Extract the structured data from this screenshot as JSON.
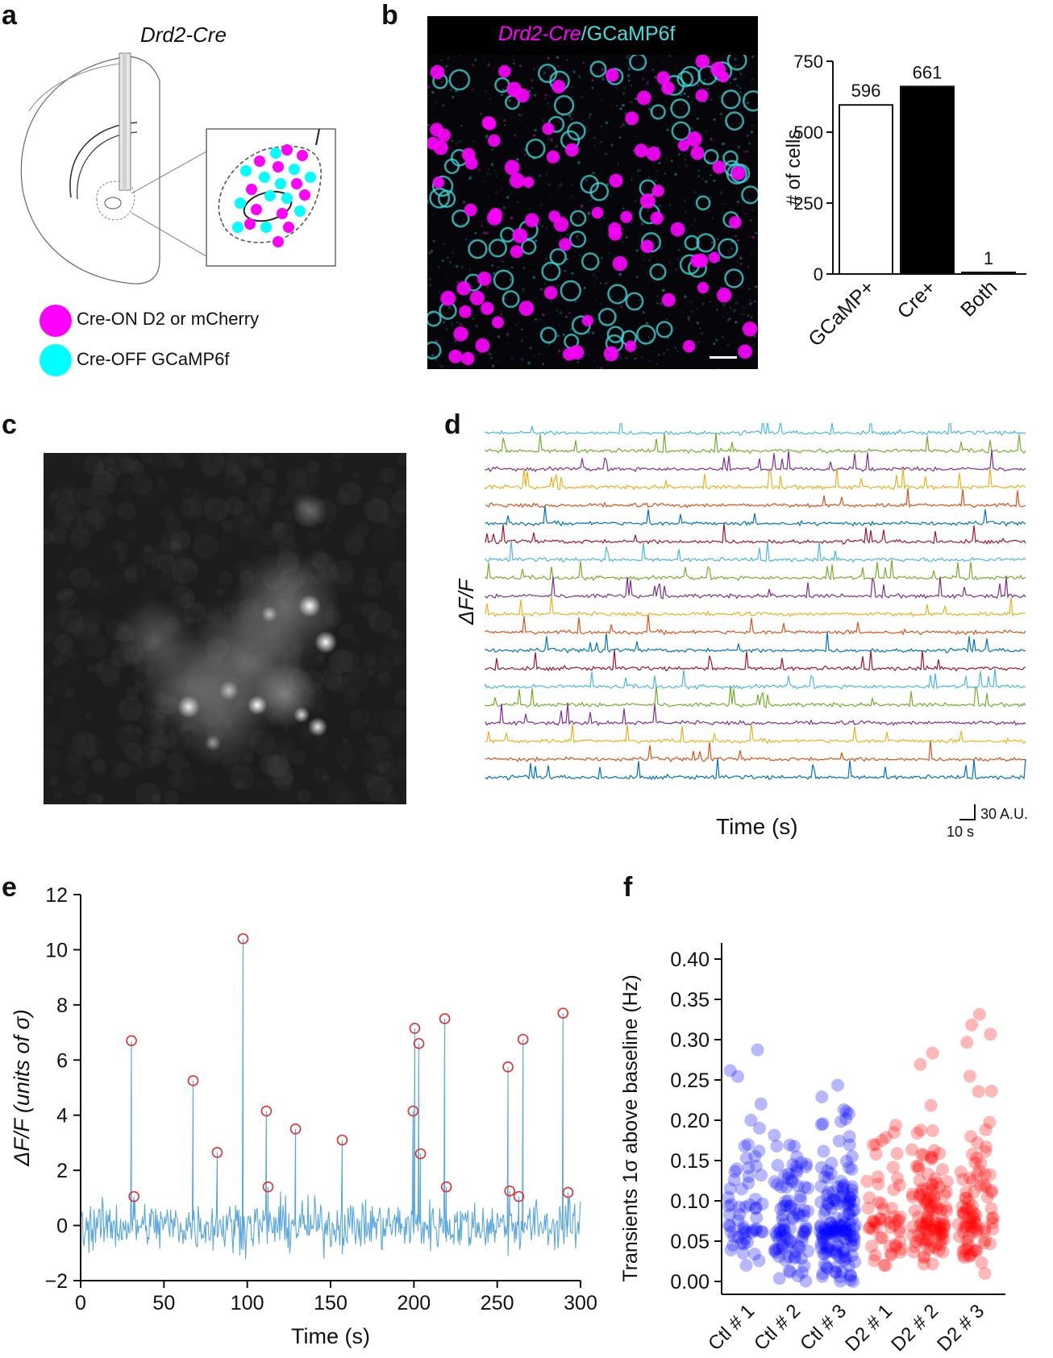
{
  "panels": {
    "a": {
      "letter": "a",
      "title": "Drd2-Cre",
      "legend": [
        {
          "label": "Cre-ON D2 or mCherry",
          "color": "#ff00ff"
        },
        {
          "label": "Cre-OFF GCaMP6f",
          "color": "#00ffff"
        }
      ]
    },
    "b": {
      "letter": "b",
      "image_title_part1": "Drd2-Cre",
      "image_title_sep": "/",
      "image_title_part2": "GCaMP6f",
      "colors": {
        "magenta": "#ff00ff",
        "cyan": "#3fe0e0"
      }
    },
    "c": {
      "letter": "c"
    },
    "d": {
      "letter": "d",
      "ylabel": "ΔF/F",
      "xlabel": "Time (s)",
      "scalebar_y": "30 A.U.",
      "scalebar_x": "10 s"
    },
    "e": {
      "letter": "e"
    },
    "f": {
      "letter": "f"
    }
  },
  "chart_data": [
    {
      "id": "b-bar",
      "type": "bar",
      "categories": [
        "GCaMP+",
        "Cre+",
        "Both"
      ],
      "values": [
        596,
        661,
        1
      ],
      "value_labels": [
        "596",
        "661",
        "1"
      ],
      "fills": [
        "#ffffff",
        "#000000",
        "#000000"
      ],
      "ylabel": "# of cells",
      "yticks": [
        0,
        250,
        500,
        750
      ],
      "ylim": [
        0,
        750
      ]
    },
    {
      "id": "d-traces",
      "type": "line",
      "n_traces": 20,
      "colors": [
        "#4db6e6",
        "#77ac30",
        "#7e2f8e",
        "#edb120",
        "#d95319",
        "#0072bd",
        "#a2142f",
        "#4db6e6",
        "#77ac30",
        "#7e2f8e",
        "#edb120",
        "#d95319",
        "#0072bd",
        "#a2142f",
        "#4db6e6",
        "#77ac30",
        "#7e2f8e",
        "#edb120",
        "#d95319",
        "#0072bd"
      ]
    },
    {
      "id": "e-trace",
      "type": "line",
      "xlabel": "Time (s)",
      "ylabel": "ΔF/F (units of σ)",
      "xlim": [
        0,
        300
      ],
      "ylim": [
        -2,
        12
      ],
      "xticks": [
        0,
        50,
        100,
        150,
        200,
        250,
        300
      ],
      "yticks": [
        -2,
        0,
        2,
        4,
        6,
        8,
        10,
        12
      ],
      "line_color": "#5aa7df",
      "marker_color": "#e03030",
      "peaks": [
        {
          "x": 30.5,
          "y": 6.7
        },
        {
          "x": 32,
          "y": 1.05
        },
        {
          "x": 67.5,
          "y": 5.25
        },
        {
          "x": 82,
          "y": 2.65
        },
        {
          "x": 97.5,
          "y": 10.4
        },
        {
          "x": 111.5,
          "y": 4.15
        },
        {
          "x": 112.5,
          "y": 1.4
        },
        {
          "x": 129,
          "y": 3.5
        },
        {
          "x": 157,
          "y": 3.1
        },
        {
          "x": 199.5,
          "y": 4.15
        },
        {
          "x": 200.5,
          "y": 7.15
        },
        {
          "x": 203,
          "y": 6.6
        },
        {
          "x": 204,
          "y": 2.6
        },
        {
          "x": 218.5,
          "y": 7.5
        },
        {
          "x": 219.5,
          "y": 1.4
        },
        {
          "x": 256.5,
          "y": 5.75
        },
        {
          "x": 257.5,
          "y": 1.25
        },
        {
          "x": 263,
          "y": 1.05
        },
        {
          "x": 265.5,
          "y": 6.75
        },
        {
          "x": 289.5,
          "y": 7.7
        },
        {
          "x": 292.5,
          "y": 1.2
        }
      ]
    },
    {
      "id": "f-scatter",
      "type": "scatter",
      "ylabel": "Transients 1σ above baseline (Hz)",
      "ylim": [
        0,
        0.42
      ],
      "yticks": [
        "0.00",
        "0.05",
        "0.10",
        "0.15",
        "0.20",
        "0.25",
        "0.30",
        "0.35",
        "0.40"
      ],
      "groups": [
        {
          "name": "Ctl # 1",
          "color": "#0000ff",
          "n": 60,
          "min": 0.02,
          "max": 0.29,
          "median": 0.08
        },
        {
          "name": "Ctl # 2",
          "color": "#0000ff",
          "n": 90,
          "min": 0.0,
          "max": 0.2,
          "median": 0.07
        },
        {
          "name": "Ctl # 3",
          "color": "#0000ff",
          "n": 150,
          "min": 0.0,
          "max": 0.25,
          "median": 0.07
        },
        {
          "name": "D2 # 1",
          "color": "#ff0000",
          "n": 55,
          "min": 0.02,
          "max": 0.21,
          "median": 0.08
        },
        {
          "name": "D2 # 2",
          "color": "#ff0000",
          "n": 110,
          "min": 0.01,
          "max": 0.3,
          "median": 0.08
        },
        {
          "name": "D2 # 3",
          "color": "#ff0000",
          "n": 90,
          "min": 0.01,
          "max": 0.34,
          "median": 0.08
        }
      ]
    }
  ]
}
